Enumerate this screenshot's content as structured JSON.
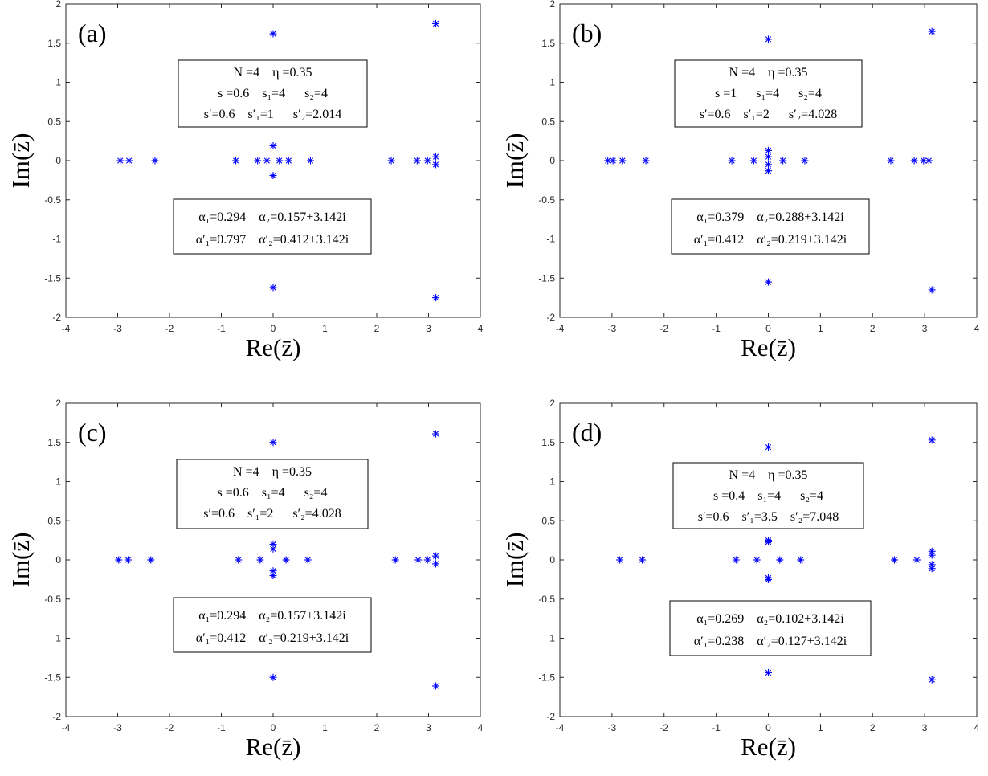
{
  "chart_data": [
    {
      "type": "scatter",
      "panel_label": "(a)",
      "xlabel": "Re(z̄)",
      "ylabel": "Im(z̄)",
      "xlim": [
        -4,
        4
      ],
      "ylim": [
        -2,
        2
      ],
      "xticks": [
        "-4",
        "-3",
        "-2",
        "-1",
        "0",
        "1",
        "2",
        "3",
        "4"
      ],
      "yticks": [
        "-2",
        "-1.5",
        "-1",
        "-0.5",
        "0",
        "0.5",
        "1",
        "1.5",
        "2"
      ],
      "grid": false,
      "marker": "*",
      "marker_color": "#0000ff",
      "params_box": [
        "N =4    η =0.35",
        "s =0.6    s₁=4      s₂=4",
        "s′=0.6    s′₁=1      s′₂=2.014"
      ],
      "alpha_box": [
        "α₁=0.294    α₂=0.157+3.142i",
        "α′₁=0.797    α′₂=0.412+3.142i"
      ],
      "points": [
        [
          -2.95,
          0
        ],
        [
          -2.78,
          0
        ],
        [
          -2.28,
          0
        ],
        [
          -0.72,
          0
        ],
        [
          -0.3,
          0
        ],
        [
          -0.12,
          0
        ],
        [
          0.12,
          0
        ],
        [
          0.3,
          0
        ],
        [
          0.72,
          0
        ],
        [
          2.28,
          0
        ],
        [
          2.78,
          0
        ],
        [
          2.98,
          0
        ],
        [
          3.14,
          0.05
        ],
        [
          3.14,
          -0.05
        ],
        [
          0,
          0.19
        ],
        [
          0,
          -0.19
        ],
        [
          0,
          1.62
        ],
        [
          0,
          -1.62
        ],
        [
          3.14,
          1.75
        ],
        [
          3.14,
          -1.75
        ]
      ]
    },
    {
      "type": "scatter",
      "panel_label": "(b)",
      "xlabel": "Re(z̄)",
      "ylabel": "Im(z̄)",
      "xlim": [
        -4,
        4
      ],
      "ylim": [
        -2,
        2
      ],
      "xticks": [
        "-4",
        "-3",
        "-2",
        "-1",
        "0",
        "1",
        "2",
        "3",
        "4"
      ],
      "yticks": [
        "-2",
        "-1.5",
        "-1",
        "-0.5",
        "0",
        "0.5",
        "1",
        "1.5",
        "2"
      ],
      "grid": false,
      "marker": "*",
      "marker_color": "#0000ff",
      "params_box": [
        "N =4    η =0.35",
        "s =1      s₁=4      s₂=4",
        "s′=0.6    s′₁=2      s′₂=4.028"
      ],
      "alpha_box": [
        "α₁=0.379    α₂=0.288+3.142i",
        "α′₁=0.412    α′₂=0.219+3.142i"
      ],
      "points": [
        [
          -3.08,
          0
        ],
        [
          -2.98,
          0
        ],
        [
          -2.8,
          0
        ],
        [
          -2.35,
          0
        ],
        [
          -0.7,
          0
        ],
        [
          -0.28,
          0
        ],
        [
          0.28,
          0
        ],
        [
          0.7,
          0
        ],
        [
          0,
          0.13
        ],
        [
          0,
          0.05
        ],
        [
          0,
          -0.05
        ],
        [
          0,
          -0.13
        ],
        [
          2.35,
          0
        ],
        [
          2.8,
          0
        ],
        [
          2.98,
          0
        ],
        [
          3.08,
          0
        ],
        [
          0,
          1.55
        ],
        [
          0,
          -1.55
        ],
        [
          3.14,
          1.65
        ],
        [
          3.14,
          -1.65
        ]
      ]
    },
    {
      "type": "scatter",
      "panel_label": "(c)",
      "xlabel": "Re(z̄)",
      "ylabel": "Im(z̄)",
      "xlim": [
        -4,
        4
      ],
      "ylim": [
        -2,
        2
      ],
      "xticks": [
        "-4",
        "-3",
        "-2",
        "-1",
        "0",
        "1",
        "2",
        "3",
        "4"
      ],
      "yticks": [
        "-2",
        "-1.5",
        "-1",
        "-0.5",
        "0",
        "0.5",
        "1",
        "1.5",
        "2"
      ],
      "grid": false,
      "marker": "*",
      "marker_color": "#0000ff",
      "params_box": [
        "N =4    η =0.35",
        "s =0.6    s₁=4      s₂=4",
        "s′=0.6    s′₁=2      s′₂=4.028"
      ],
      "alpha_box": [
        "α₁=0.294    α₂=0.157+3.142i",
        "α′₁=0.412    α′₂=0.219+3.142i"
      ],
      "points": [
        [
          -2.98,
          0
        ],
        [
          -2.8,
          0
        ],
        [
          -2.36,
          0
        ],
        [
          -0.67,
          0
        ],
        [
          -0.25,
          0
        ],
        [
          0.25,
          0
        ],
        [
          0.67,
          0
        ],
        [
          0,
          0.2
        ],
        [
          0,
          0.14
        ],
        [
          0,
          -0.14
        ],
        [
          0,
          -0.2
        ],
        [
          2.36,
          0
        ],
        [
          2.8,
          0
        ],
        [
          2.98,
          0
        ],
        [
          3.14,
          0.05
        ],
        [
          3.14,
          -0.05
        ],
        [
          0,
          1.5
        ],
        [
          0,
          -1.5
        ],
        [
          3.14,
          1.61
        ],
        [
          3.14,
          -1.61
        ]
      ]
    },
    {
      "type": "scatter",
      "panel_label": "(d)",
      "xlabel": "Re(z̄)",
      "ylabel": "Im(z̄)",
      "xlim": [
        -4,
        4
      ],
      "ylim": [
        -2,
        2
      ],
      "xticks": [
        "-4",
        "-3",
        "-2",
        "-1",
        "0",
        "1",
        "2",
        "3",
        "4"
      ],
      "yticks": [
        "-2",
        "-1.5",
        "-1",
        "-0.5",
        "0",
        "0.5",
        "1",
        "1.5",
        "2"
      ],
      "grid": false,
      "marker": "*",
      "marker_color": "#0000ff",
      "params_box": [
        "N =4    η =0.35",
        "s =0.4    s₁=4      s₂=4",
        "s′=0.6    s′₁=3.5    s′₂=7.048"
      ],
      "alpha_box": [
        "α₁=0.269    α₂=0.102+3.142i",
        "α′₁=0.238    α′₂=0.127+3.142i"
      ],
      "points": [
        [
          -2.85,
          0
        ],
        [
          -2.42,
          0
        ],
        [
          -0.62,
          0
        ],
        [
          -0.22,
          0
        ],
        [
          0.22,
          0
        ],
        [
          0.62,
          0
        ],
        [
          0,
          0.25
        ],
        [
          0,
          0.23
        ],
        [
          0,
          -0.23
        ],
        [
          0,
          -0.25
        ],
        [
          2.42,
          0
        ],
        [
          2.85,
          0
        ],
        [
          3.14,
          0.11
        ],
        [
          3.14,
          0.06
        ],
        [
          3.14,
          -0.06
        ],
        [
          3.14,
          -0.11
        ],
        [
          0,
          1.44
        ],
        [
          0,
          -1.44
        ],
        [
          3.14,
          1.53
        ],
        [
          3.14,
          -1.53
        ]
      ]
    }
  ]
}
